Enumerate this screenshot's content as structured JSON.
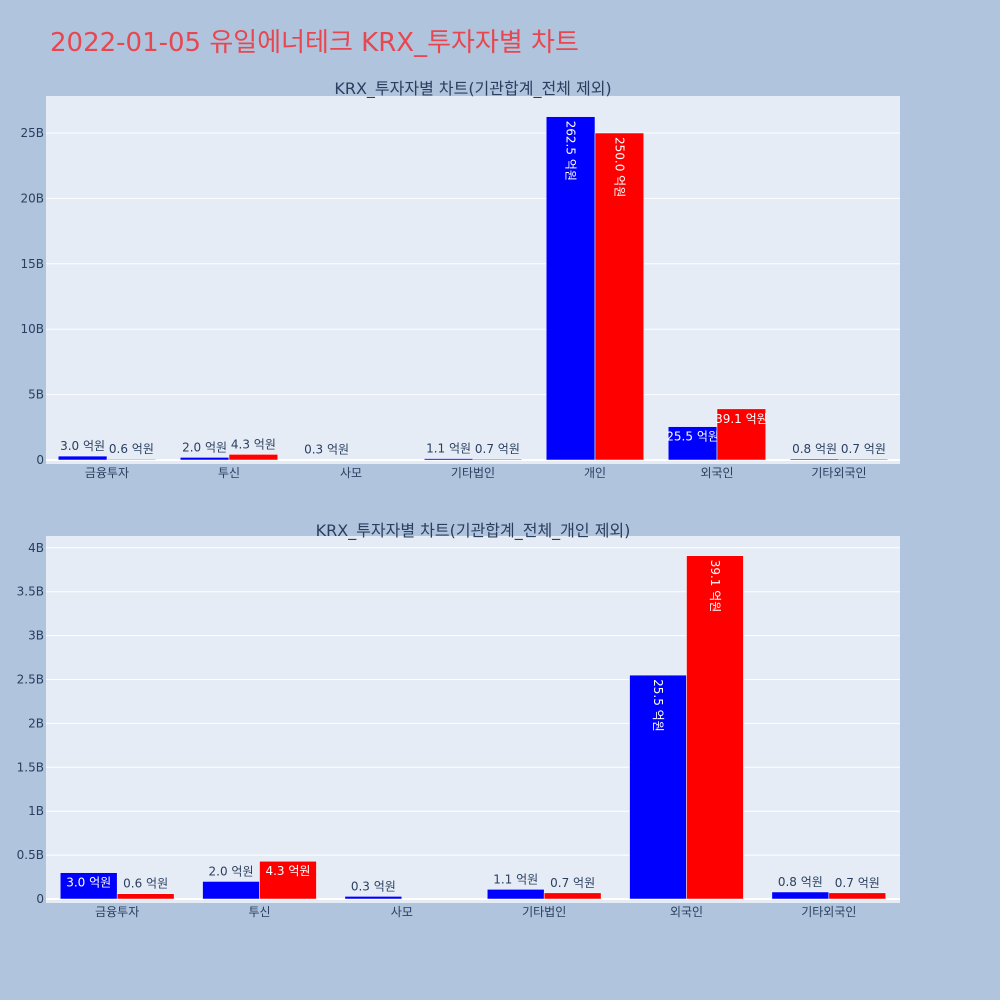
{
  "page_title": "2022-01-05 유일에너테크 KRX_투자자별 차트",
  "colors": {
    "series_a": "#0000ff",
    "series_b": "#ff0000",
    "plot_bg": "#e5ecf6",
    "page_bg": "#b0c4de",
    "title": "#e8474f",
    "text": "#2a3f5f"
  },
  "chart_data": [
    {
      "type": "bar",
      "title": "KRX_투자자별 차트(기관합계_전체 제외)",
      "categories": [
        "금융투자",
        "투신",
        "사모",
        "기타법인",
        "개인",
        "외국인",
        "기타외국인"
      ],
      "series": [
        {
          "color": "#0000ff",
          "values": [
            0.3,
            0.2,
            0.03,
            0.11,
            26.25,
            2.55,
            0.08
          ],
          "labels": [
            "3.0 억원",
            "2.0 억원",
            "0.3 억원",
            "1.1 억원",
            "262.5 억원",
            "25.5 억원",
            "0.8 억원"
          ]
        },
        {
          "color": "#ff0000",
          "values": [
            0.06,
            0.43,
            0,
            0.07,
            25.0,
            3.91,
            0.07
          ],
          "labels": [
            "0.6 억원",
            "4.3 억원",
            "",
            "0.7 억원",
            "250.0 억원",
            "39.1 억원",
            "0.7 억원"
          ]
        }
      ],
      "y_unit": "B",
      "ylim": [
        0,
        28
      ],
      "yticks": [
        "0",
        "5B",
        "10B",
        "15B",
        "20B",
        "25B"
      ],
      "grid": true
    },
    {
      "type": "bar",
      "title": "KRX_투자자별 차트(기관합계_전체_개인 제외)",
      "categories": [
        "금융투자",
        "투신",
        "사모",
        "기타법인",
        "외국인",
        "기타외국인"
      ],
      "series": [
        {
          "color": "#0000ff",
          "values": [
            0.3,
            0.2,
            0.03,
            0.11,
            2.55,
            0.08
          ],
          "labels": [
            "3.0 억원",
            "2.0 억원",
            "0.3 억원",
            "1.1 억원",
            "25.5 억원",
            "0.8 억원"
          ]
        },
        {
          "color": "#ff0000",
          "values": [
            0.06,
            0.43,
            0,
            0.07,
            3.91,
            0.07
          ],
          "labels": [
            "0.6 억원",
            "4.3 억원",
            "",
            "0.7 억원",
            "39.1 억원",
            "0.7 억원"
          ]
        }
      ],
      "y_unit": "B",
      "ylim": [
        0,
        4.2
      ],
      "yticks": [
        "0",
        "0.5B",
        "1B",
        "1.5B",
        "2B",
        "2.5B",
        "3B",
        "3.5B",
        "4B"
      ],
      "grid": true
    }
  ]
}
